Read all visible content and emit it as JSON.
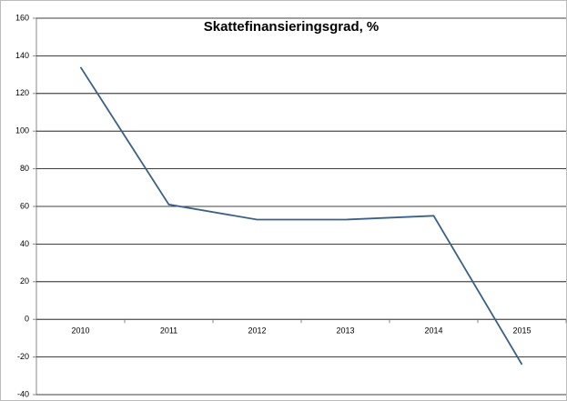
{
  "chart_data": {
    "type": "line",
    "title": "Skattefinansieringsgrad, %",
    "categories": [
      "2010",
      "2011",
      "2012",
      "2013",
      "2014",
      "2015"
    ],
    "values": [
      134,
      61,
      53,
      53,
      55,
      -24
    ],
    "color": "#3b6088",
    "ylim": [
      -40,
      160
    ],
    "yticks": [
      -40,
      -20,
      0,
      20,
      40,
      60,
      80,
      100,
      120,
      140,
      160
    ],
    "grid": true
  }
}
